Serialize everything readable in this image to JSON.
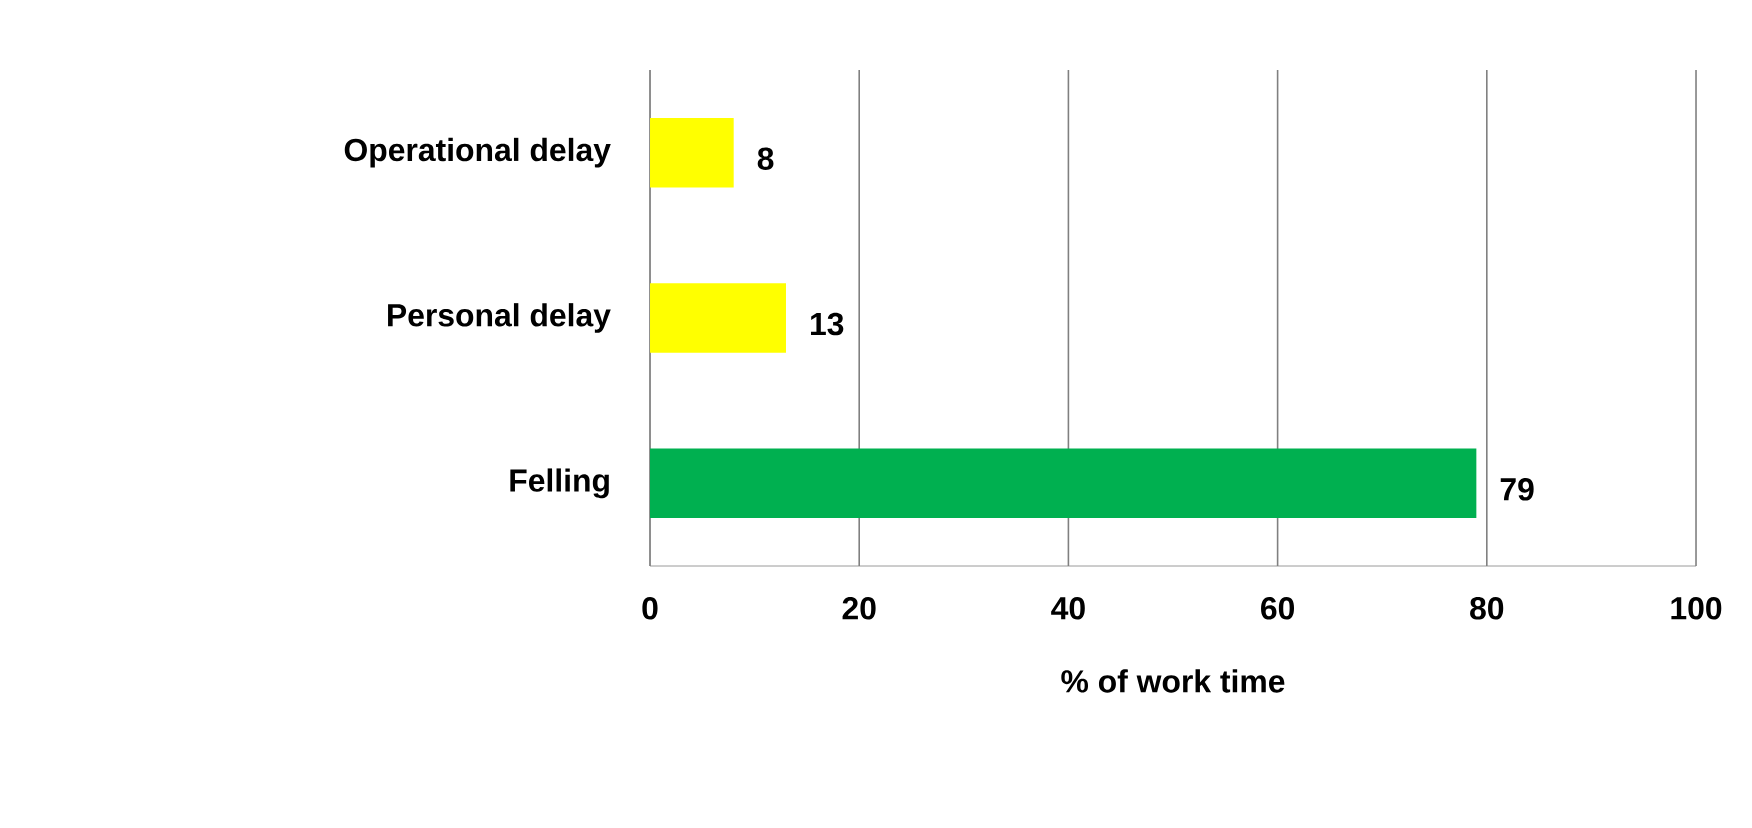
{
  "chart_data": {
    "type": "bar",
    "orientation": "horizontal",
    "xlabel": "% of work time",
    "categories": [
      "Operational delay",
      "Personal delay",
      "Felling"
    ],
    "values": [
      8,
      13,
      79
    ],
    "colors": [
      "#ffff00",
      "#ffff00",
      "#00b050"
    ],
    "xlim": [
      0,
      100
    ],
    "xticks": [
      0,
      20,
      40,
      60,
      80,
      100
    ],
    "grid": "x",
    "data_labels": true
  }
}
